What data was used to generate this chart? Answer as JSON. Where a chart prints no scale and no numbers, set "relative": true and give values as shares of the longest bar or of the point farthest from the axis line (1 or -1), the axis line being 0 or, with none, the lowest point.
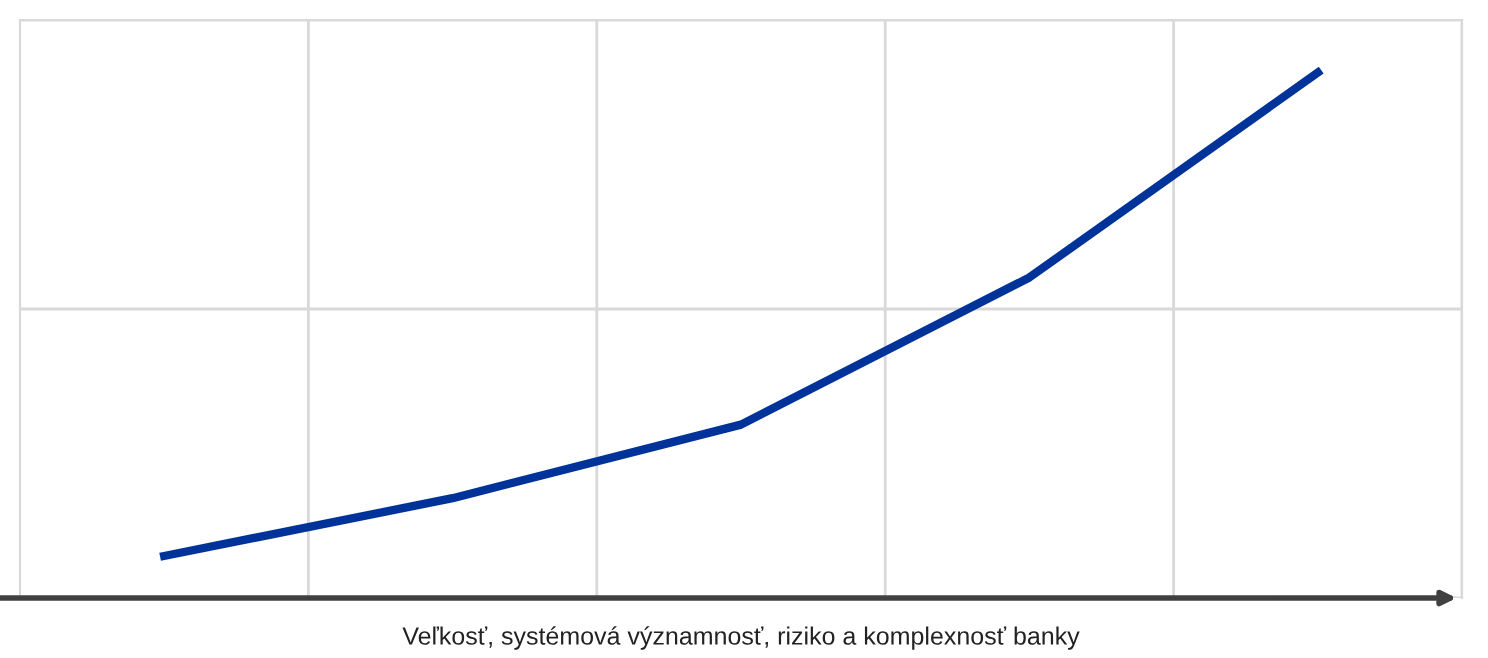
{
  "chart_data": {
    "type": "line",
    "relative": true,
    "xlabel": "Veľkosť, systémová významnosť, riziko a komplexnosť banky",
    "categories": [
      null,
      null,
      null,
      null,
      null
    ],
    "series": [
      {
        "color": "#003399",
        "values": [
          0.08,
          0.19,
          0.33,
          0.61,
          1.0
        ]
      }
    ],
    "grid": true,
    "legend": false,
    "marker": "none",
    "line_style": "solid"
  }
}
